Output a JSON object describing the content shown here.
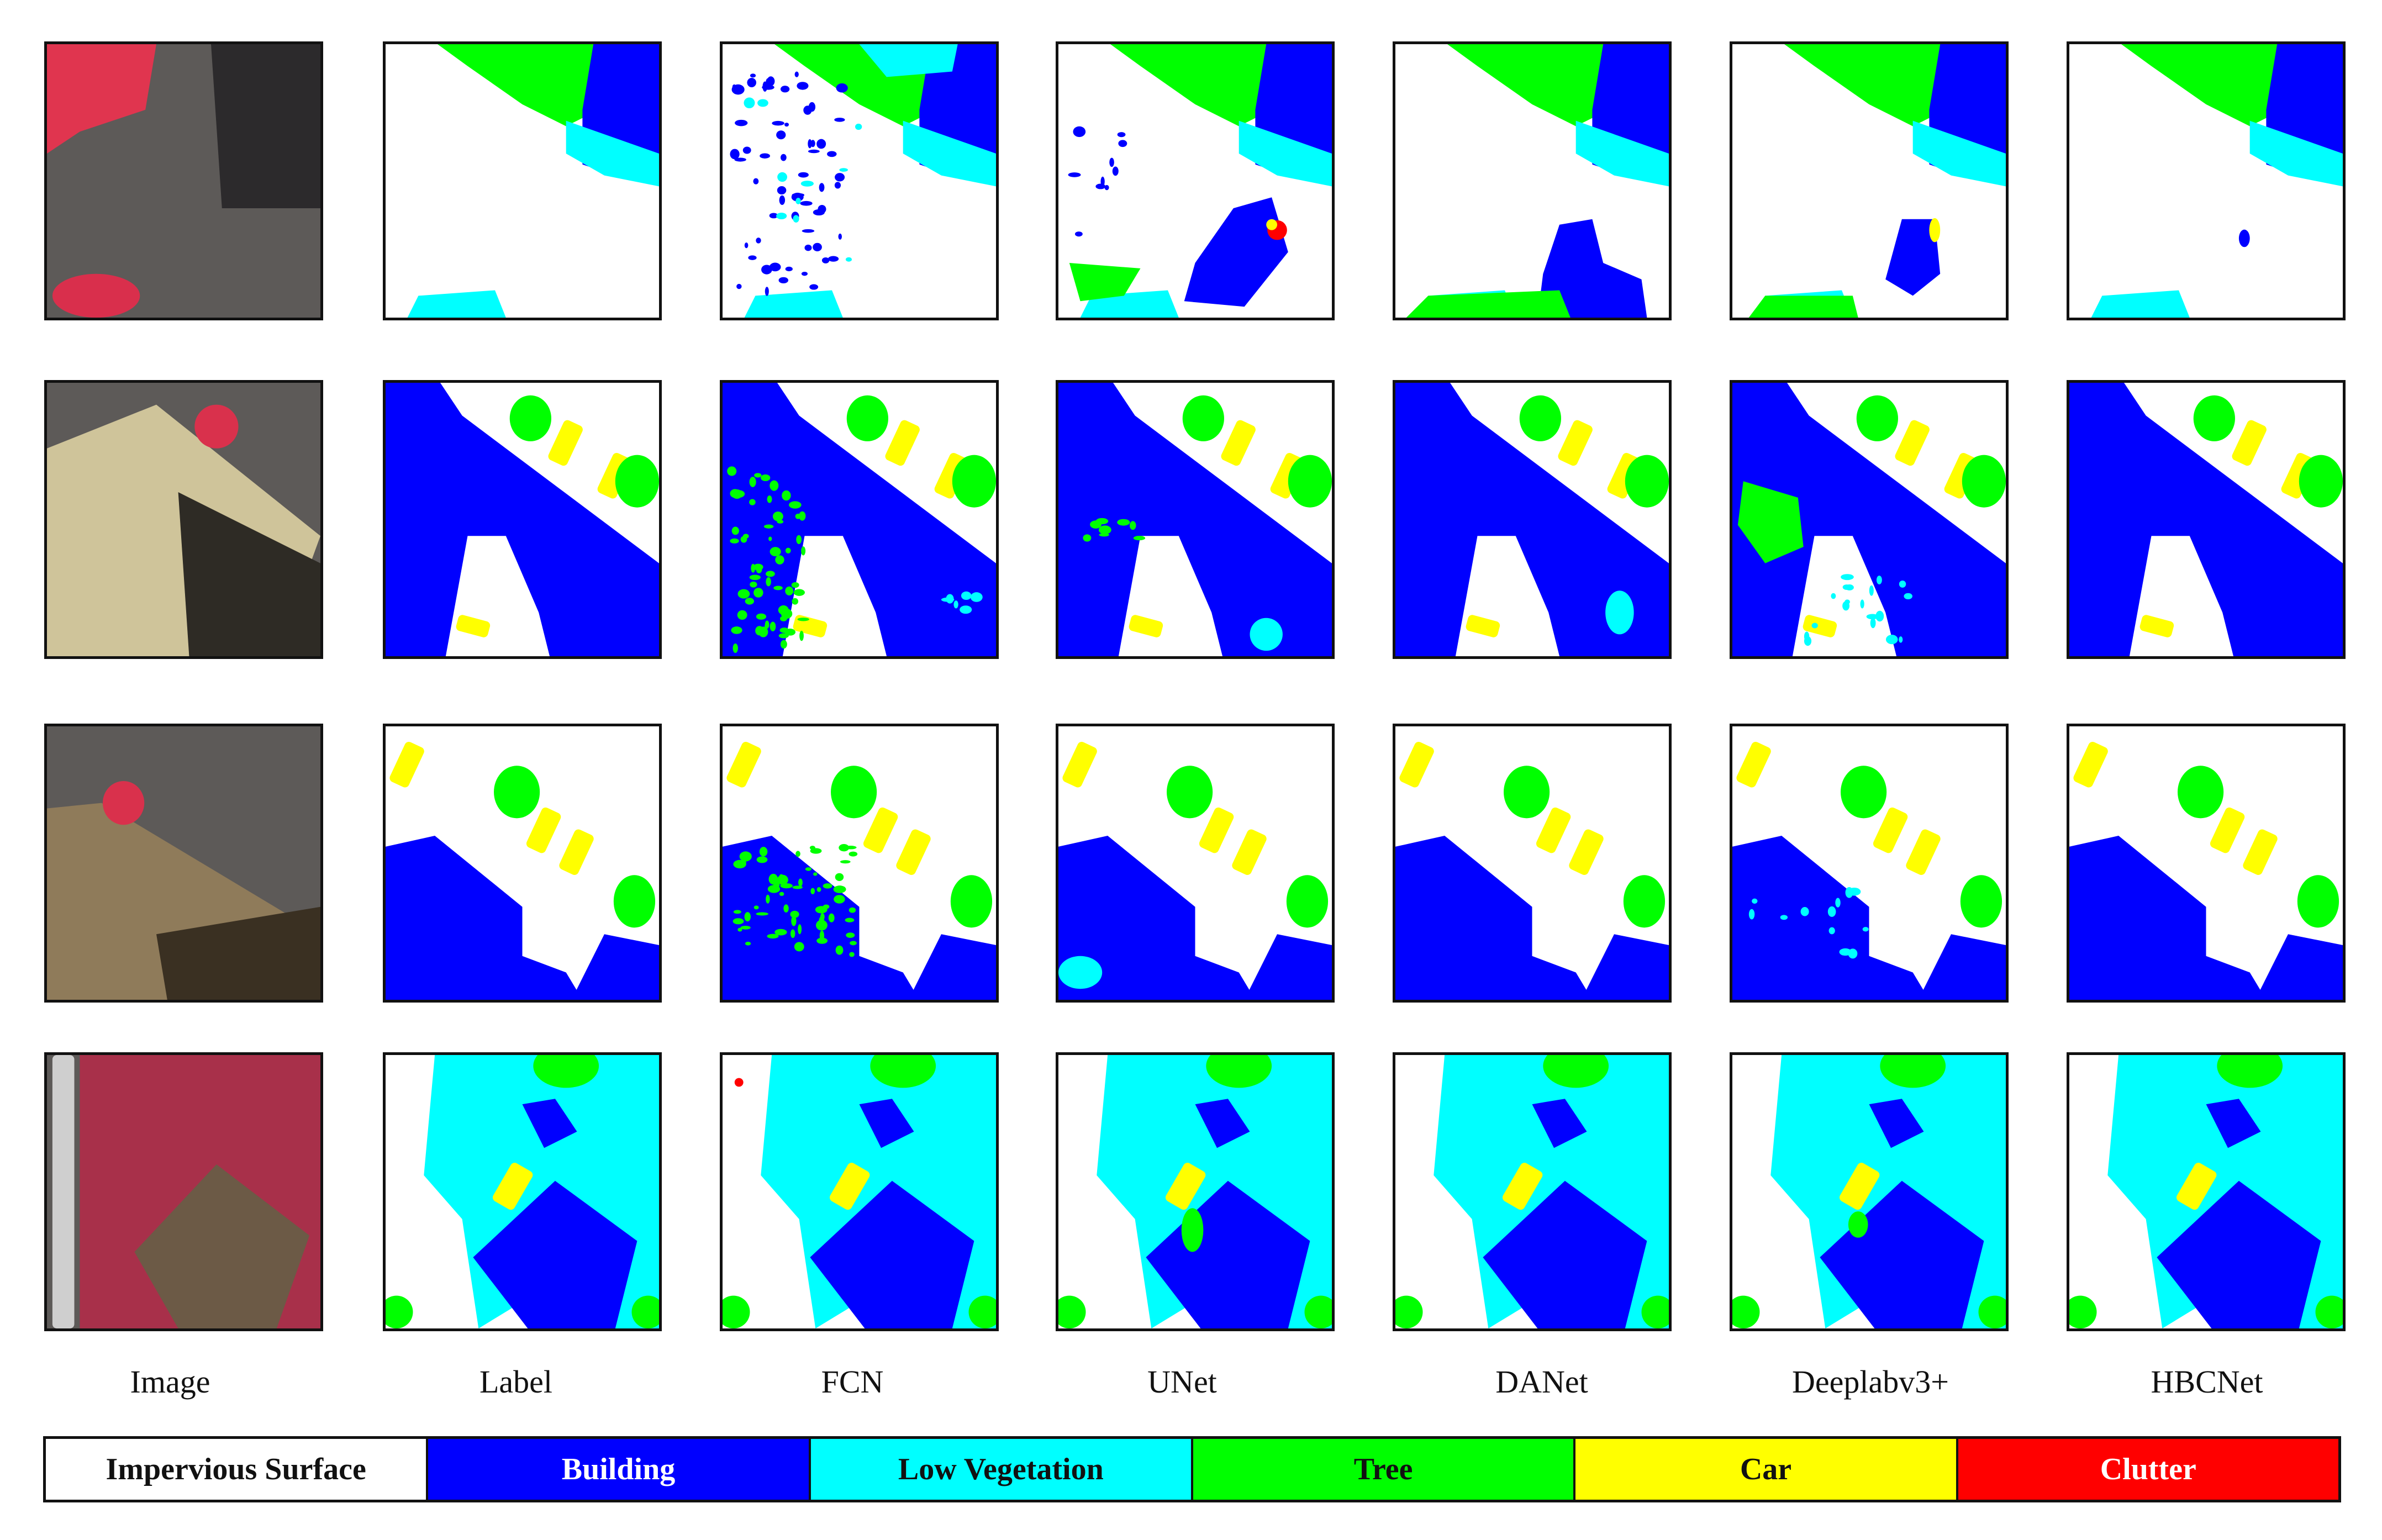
{
  "columns": [
    "Image",
    "Label",
    "FCN",
    "UNet",
    "DANet",
    "Deeplabv3+",
    "HBCNet"
  ],
  "legend": [
    {
      "label": "Impervious Surface",
      "color": "#ffffff",
      "text_color": "#111111"
    },
    {
      "label": "Building",
      "color": "#0000ff",
      "text_color": "#ffffff"
    },
    {
      "label": "Low Vegetation",
      "color": "#00ffff",
      "text_color": "#111111"
    },
    {
      "label": "Tree",
      "color": "#00ff00",
      "text_color": "#111111"
    },
    {
      "label": "Car",
      "color": "#ffff00",
      "text_color": "#111111"
    },
    {
      "label": "Clutter",
      "color": "#ff0000",
      "text_color": "#ffffff"
    }
  ],
  "rows": 4
}
